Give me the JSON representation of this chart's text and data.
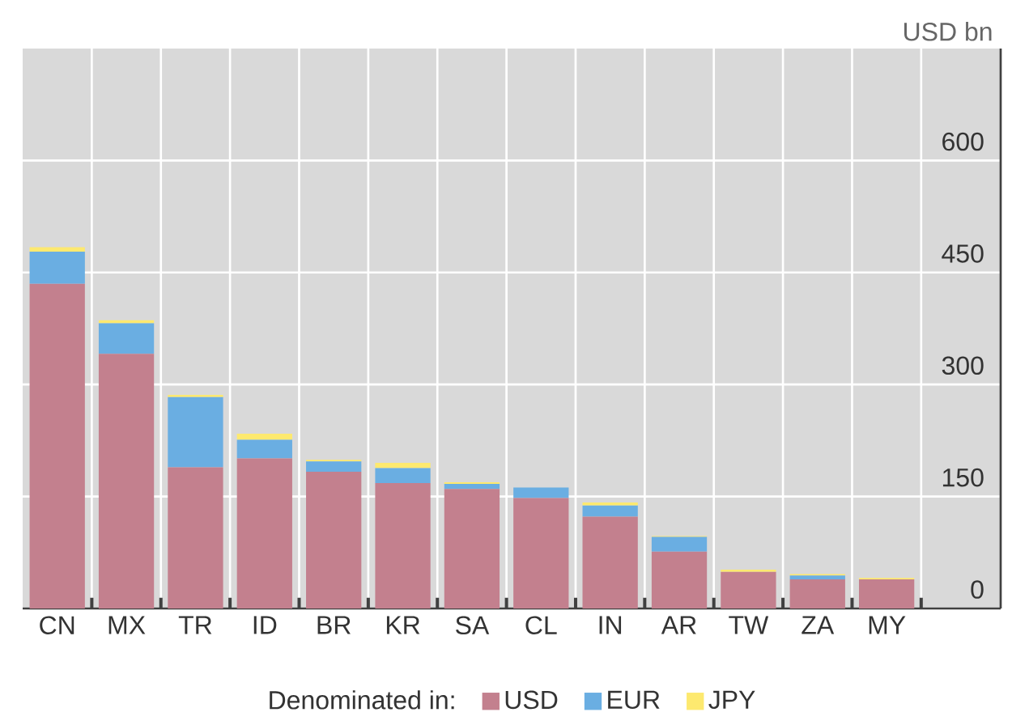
{
  "chart_data": {
    "type": "bar",
    "stacked": true,
    "ylabel": "USD bn",
    "legend_title": "Denominated in:",
    "categories": [
      "CN",
      "MX",
      "TR",
      "ID",
      "BR",
      "KR",
      "SA",
      "CL",
      "IN",
      "AR",
      "TW",
      "ZA",
      "MY"
    ],
    "series": [
      {
        "name": "USD",
        "color": "#c3808e",
        "values": [
          435,
          341,
          189,
          201,
          183,
          168,
          160,
          148,
          123,
          76,
          49,
          39,
          39
        ]
      },
      {
        "name": "EUR",
        "color": "#6aaee2",
        "values": [
          43,
          41,
          94,
          25,
          14,
          20,
          7,
          14,
          15,
          20,
          0,
          5,
          0
        ]
      },
      {
        "name": "JPY",
        "color": "#fde96f",
        "values": [
          6,
          4,
          3,
          8,
          2,
          7,
          2,
          0,
          4,
          1,
          3,
          2,
          2
        ]
      }
    ],
    "ylim": [
      0,
      750
    ],
    "yticks": [
      0,
      150,
      300,
      450,
      600
    ],
    "grid": true,
    "legend": "bottom"
  }
}
